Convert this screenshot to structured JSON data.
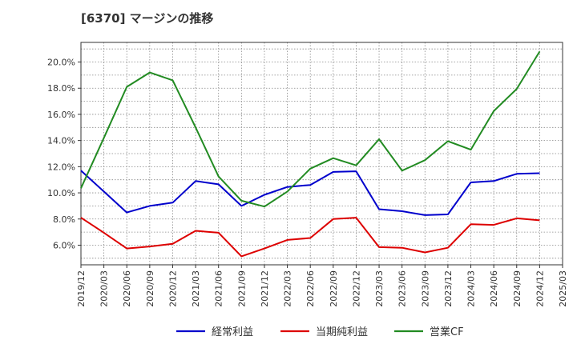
{
  "title": "[6370]  マージンの推移",
  "chart_data": {
    "type": "line",
    "x": [
      "2019/12",
      "2020/03",
      "2020/06",
      "2020/09",
      "2020/12",
      "2021/03",
      "2021/06",
      "2021/09",
      "2021/12",
      "2022/03",
      "2022/06",
      "2022/09",
      "2022/12",
      "2023/03",
      "2023/06",
      "2023/09",
      "2023/12",
      "2024/03",
      "2024/06",
      "2024/09",
      "2024/12"
    ],
    "x_tick_labels": [
      "2019/12",
      "2020/03",
      "2020/06",
      "2020/09",
      "2020/12",
      "2021/03",
      "2021/06",
      "2021/09",
      "2021/12",
      "2022/03",
      "2022/06",
      "2022/09",
      "2022/12",
      "2023/03",
      "2023/06",
      "2023/09",
      "2023/12",
      "2024/03",
      "2024/06",
      "2024/09",
      "2024/12",
      "2025/03"
    ],
    "y_ticks": [
      6,
      8,
      10,
      12,
      14,
      16,
      18,
      20
    ],
    "y_tick_labels": [
      "6.0%",
      "8.0%",
      "10.0%",
      "12.0%",
      "14.0%",
      "16.0%",
      "18.0%",
      "20.0%"
    ],
    "ylim": [
      4.5,
      21.5
    ],
    "grid": true,
    "legend_position": "bottom",
    "series": [
      {
        "name": "経常利益",
        "color": "#0000cc",
        "values": [
          11.7,
          10.1,
          8.5,
          9.0,
          9.25,
          10.9,
          10.65,
          9.0,
          9.85,
          10.45,
          10.6,
          11.6,
          11.65,
          8.75,
          8.6,
          8.3,
          8.35,
          10.8,
          10.9,
          11.45,
          11.5
        ]
      },
      {
        "name": "当期純利益",
        "color": "#dd0000",
        "values": [
          8.1,
          6.95,
          5.75,
          5.9,
          6.1,
          7.1,
          6.95,
          5.15,
          5.75,
          6.4,
          6.55,
          8.0,
          8.1,
          5.85,
          5.8,
          5.45,
          5.8,
          7.6,
          7.55,
          8.05,
          7.9
        ]
      },
      {
        "name": "営業CF",
        "color": "#228b22",
        "values": [
          10.35,
          14.2,
          18.1,
          19.2,
          18.6,
          15.0,
          11.25,
          9.4,
          8.95,
          10.1,
          11.85,
          12.65,
          12.1,
          14.1,
          11.7,
          12.5,
          13.95,
          13.3,
          16.25,
          17.95,
          20.8
        ]
      }
    ]
  }
}
